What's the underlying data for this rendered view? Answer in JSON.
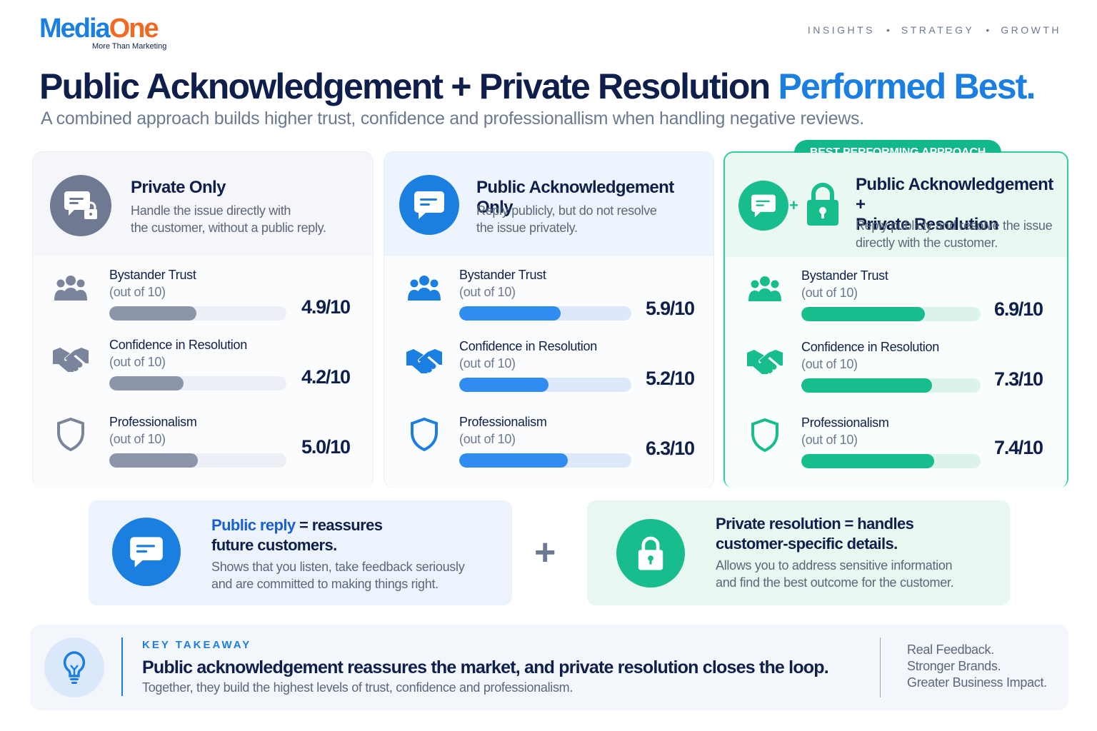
{
  "brand": {
    "name_part1": "Media",
    "name_part2": "One",
    "tagline": "More Than Marketing"
  },
  "nav": [
    "INSIGHTS",
    "STRATEGY",
    "GROWTH"
  ],
  "nav_separator": "•",
  "headline": {
    "main": "Public Acknowledgement + Private Resolution ",
    "accent": "Performed Best."
  },
  "subheadline": "A combined approach builds higher trust, confidence and professionallism when handling negative reviews.",
  "cards": [
    {
      "title": "Private Only",
      "description_lines": [
        "Handle the issue directly with",
        "the customer, without a public reply."
      ],
      "metrics": [
        {
          "label": "Bystander Trust",
          "sub": "(out of 10)",
          "value": 4.9,
          "display": "4.9/10"
        },
        {
          "label": "Confidence in Resolution",
          "sub": "(out of 10)",
          "value": 4.2,
          "display": "4.2/10"
        },
        {
          "label": "Professionalism",
          "sub": "(out of 10)",
          "value": 5.0,
          "display": "5.0/10"
        }
      ]
    },
    {
      "title": "Public Acknowledgement Only",
      "description_lines": [
        "Reply publicly, but do not resolve",
        "the issue privately."
      ],
      "metrics": [
        {
          "label": "Bystander Trust",
          "sub": "(out of 10)",
          "value": 5.9,
          "display": "5.9/10"
        },
        {
          "label": "Confidence in Resolution",
          "sub": "(out of 10)",
          "value": 5.2,
          "display": "5.2/10"
        },
        {
          "label": "Professionalism",
          "sub": "(out of 10)",
          "value": 6.3,
          "display": "6.3/10"
        }
      ]
    },
    {
      "badge": "BEST PERFORMING APPROACH",
      "title_lines": [
        "Public Acknowledgement +",
        "Private Resolution"
      ],
      "description_lines": [
        "Reply publicly and resolve the issue",
        "directly with the customer."
      ],
      "metrics": [
        {
          "label": "Bystander Trust",
          "sub": "(out of 10)",
          "value": 6.9,
          "display": "6.9/10"
        },
        {
          "label": "Confidence in Resolution",
          "sub": "(out of 10)",
          "value": 7.3,
          "display": "7.3/10"
        },
        {
          "label": "Professionalism",
          "sub": "(out of 10)",
          "value": 7.4,
          "display": "7.4/10"
        }
      ]
    }
  ],
  "scale_max": 10,
  "panels": {
    "public": {
      "title_highlight": "Public reply",
      "title_rest": " = reassures",
      "title_line2": "future customers.",
      "description_lines": [
        "Shows that you listen, take feedback seriously",
        "and are committed to making things right."
      ]
    },
    "plus": "+",
    "private": {
      "title_line1": "Private resolution = handles",
      "title_line2": "customer-specific details.",
      "description_lines": [
        "Allows you to address sensitive information",
        "and find the best outcome for the customer."
      ]
    }
  },
  "takeaway": {
    "label": "KEY TAKEAWAY",
    "main": "Public acknowledgement reassures the market, and private resolution closes the loop.",
    "sub": "Together, they build the highest levels of trust, confidence and professionalism.",
    "right_lines": [
      "Real Feedback.",
      "Stronger Brands.",
      "Greater Business Impact."
    ]
  },
  "colors": {
    "navy": "#0f1f4b",
    "blue": "#1a7fe0",
    "orange": "#f26a21",
    "gray": "#8c95aa",
    "green": "#17bd8c"
  }
}
